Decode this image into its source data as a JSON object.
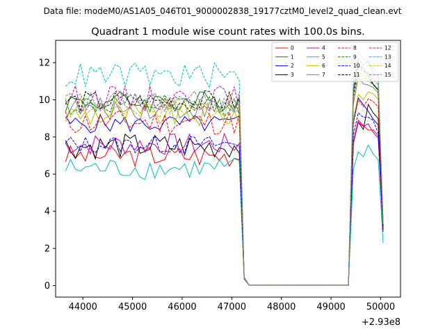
{
  "suptitle": "Data file: modeM0/AS1A05_046T01_9000002838_19177cztM0_level2_quad_clean.evt",
  "chart_data": {
    "type": "line",
    "title": "Quadrant 1 module wise count rates with 100.0s bins.",
    "xlabel": "",
    "ylabel": "",
    "x_offset_label": "+2.93e8",
    "xlim": [
      43450,
      50400
    ],
    "ylim": [
      -0.62,
      13.2
    ],
    "xticks": [
      44000,
      45000,
      46000,
      47000,
      48000,
      49000,
      50000
    ],
    "xtick_labels": [
      "44000",
      "45000",
      "46000",
      "47000",
      "48000",
      "49000",
      "50000"
    ],
    "yticks": [
      0,
      2,
      4,
      6,
      8,
      10,
      12
    ],
    "ytick_labels": [
      "0",
      "2",
      "4",
      "6",
      "8",
      "10",
      "12"
    ],
    "grid": false,
    "legend_placement": "top-right",
    "legend_columns": 4,
    "x_gap_start": 47400,
    "x_gap_end": 49300,
    "series": [
      {
        "name": "0",
        "color": "#ff0000",
        "dash": "solid",
        "base": 7.0,
        "amp": 0.3,
        "r1": 8.9,
        "r2": 8.5,
        "end": 2.9
      },
      {
        "name": "1",
        "color": "#008000",
        "dash": "solid",
        "base": 9.9,
        "amp": 0.3,
        "r1": 12.0,
        "r2": 11.3,
        "end": 3.4
      },
      {
        "name": "2",
        "color": "#0000ff",
        "dash": "solid",
        "base": 8.7,
        "amp": 0.25,
        "r1": 10.1,
        "r2": 9.4,
        "end": 3.3
      },
      {
        "name": "3",
        "color": "#000000",
        "dash": "solid",
        "base": 7.5,
        "amp": 0.35,
        "r1": 8.8,
        "r2": 9.7,
        "end": 3.1
      },
      {
        "name": "4",
        "color": "#bf00bf",
        "dash": "solid",
        "base": 7.6,
        "amp": 0.3,
        "r1": 8.8,
        "r2": 8.6,
        "end": 3.0
      },
      {
        "name": "5",
        "color": "#00bfbf",
        "dash": "solid",
        "base": 6.3,
        "amp": 0.3,
        "r1": 7.2,
        "r2": 7.4,
        "end": 2.3
      },
      {
        "name": "6",
        "color": "#bfbf00",
        "dash": "solid",
        "base": 9.2,
        "amp": 0.35,
        "r1": 10.3,
        "r2": 10.6,
        "end": 3.2
      },
      {
        "name": "7",
        "color": "#808080",
        "dash": "solid",
        "base": 9.5,
        "amp": 0.3,
        "r1": 11.2,
        "r2": 10.9,
        "end": 3.3
      },
      {
        "name": "8",
        "color": "#ff0000",
        "dash": "dashed",
        "base": 8.8,
        "amp": 0.35,
        "r1": 10.0,
        "r2": 10.1,
        "end": 3.1
      },
      {
        "name": "9",
        "color": "#008000",
        "dash": "dashed",
        "base": 9.7,
        "amp": 0.3,
        "r1": 11.5,
        "r2": 11.0,
        "end": 3.3
      },
      {
        "name": "10",
        "color": "#0000ff",
        "dash": "dashed",
        "base": 7.6,
        "amp": 0.25,
        "r1": 9.3,
        "r2": 9.0,
        "end": 2.9
      },
      {
        "name": "11",
        "color": "#000000",
        "dash": "dashed",
        "base": 9.9,
        "amp": 0.3,
        "r1": 11.8,
        "r2": 11.3,
        "end": 3.2
      },
      {
        "name": "12",
        "color": "#bf00bf",
        "dash": "dashed",
        "base": 10.1,
        "amp": 0.35,
        "r1": 12.2,
        "r2": 11.9,
        "end": 3.4
      },
      {
        "name": "13",
        "color": "#00bfbf",
        "dash": "dashed",
        "base": 11.3,
        "amp": 0.35,
        "r1": 12.6,
        "r2": 12.1,
        "end": 3.5
      },
      {
        "name": "14",
        "color": "#bfbf00",
        "dash": "dashed",
        "base": 9.6,
        "amp": 0.3,
        "r1": 11.4,
        "r2": 11.6,
        "end": 3.4
      },
      {
        "name": "15",
        "color": "#808080",
        "dash": "dashed",
        "base": 9.9,
        "amp": 0.3,
        "r1": 11.9,
        "r2": 11.4,
        "end": 3.3
      }
    ]
  }
}
